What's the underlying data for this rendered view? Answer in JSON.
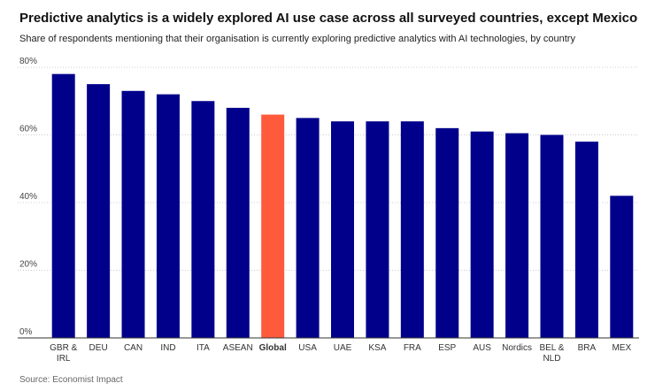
{
  "header": {
    "title": "Predictive analytics is a widely explored AI use case across all surveyed countries, except Mexico",
    "subtitle": "Share of respondents mentioning that their organisation is currently exploring predictive analytics with AI technologies, by country"
  },
  "source": "Source: Economist Impact",
  "chart_data": {
    "type": "bar",
    "title": "Predictive analytics is a widely explored AI use case across all surveyed countries, except Mexico",
    "subtitle": "Share of respondents mentioning that their organisation is currently exploring predictive analytics with AI technologies, by country",
    "categories": [
      [
        "GBR &",
        "IRL"
      ],
      [
        "DEU"
      ],
      [
        "CAN"
      ],
      [
        "IND"
      ],
      [
        "ITA"
      ],
      [
        "ASEAN"
      ],
      [
        "Global"
      ],
      [
        "USA"
      ],
      [
        "UAE"
      ],
      [
        "KSA"
      ],
      [
        "FRA"
      ],
      [
        "ESP"
      ],
      [
        "AUS"
      ],
      [
        "Nordics"
      ],
      [
        "BEL &",
        "NLD"
      ],
      [
        "BRA"
      ],
      [
        "MEX"
      ]
    ],
    "values": [
      78,
      75,
      73,
      72,
      70,
      68,
      66,
      65,
      64,
      64,
      64,
      62,
      61,
      60.5,
      60,
      58,
      42
    ],
    "highlight_index": 6,
    "ylim": [
      0,
      80
    ],
    "yticks": [
      0,
      20,
      40,
      60,
      80
    ],
    "ytick_labels": [
      "0%",
      "20%",
      "40%",
      "60%",
      "80%"
    ],
    "xlabel": "",
    "ylabel": "",
    "grid": true,
    "colors": {
      "bar": "#00008b",
      "highlight": "#ff5a3c",
      "grid": "#cccccc",
      "axis": "#333333"
    }
  }
}
